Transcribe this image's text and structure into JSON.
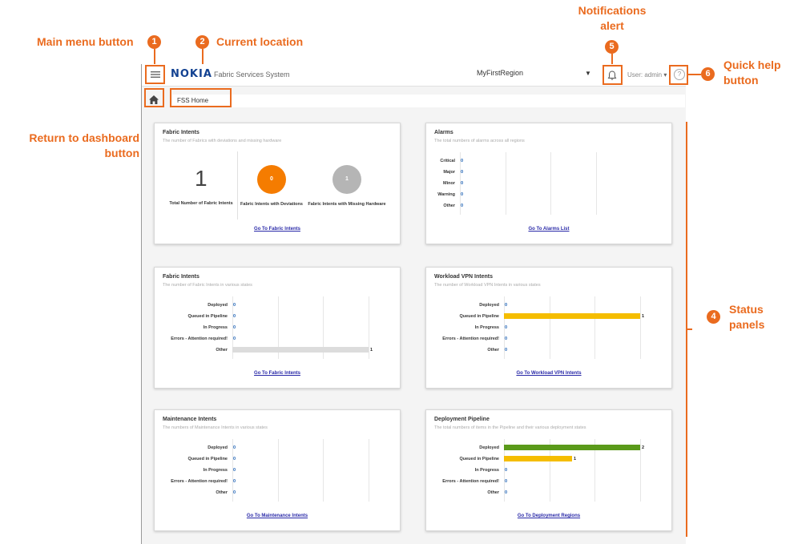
{
  "callouts": {
    "main_menu": {
      "number": "1",
      "label": "Main menu button"
    },
    "current_location": {
      "number": "2",
      "label": "Current location"
    },
    "dashboard": {
      "number": "3",
      "label_line1": "Return to dashboard",
      "label_line2": "button"
    },
    "status_panels": {
      "number": "4",
      "label_line1": "Status",
      "label_line2": "panels"
    },
    "notifications": {
      "number": "5",
      "label_line1": "Notifications",
      "label_line2": "alert"
    },
    "quick_help": {
      "number": "6",
      "label_line1": "Quick help",
      "label_line2": "button"
    }
  },
  "header": {
    "logo": "NOKIA",
    "app_title": "Fabric Services System",
    "region": "MyFirstRegion",
    "user": "User: admin",
    "help_icon": "?"
  },
  "breadcrumb": {
    "current": "FSS Home"
  },
  "colors": {
    "accent": "#ea6b1f",
    "orange_circle": "#f57c00",
    "gray_circle": "#b5b5b5",
    "yellow_bar": "#f5bd00",
    "green_bar": "#5a9a1a",
    "gray_bar": "#dcdcdc",
    "nokia_blue": "#124191"
  },
  "panels": {
    "fabric_summary": {
      "title": "Fabric Intents",
      "subtitle": "The number of Fabrics with deviations and missing hardware",
      "total_value": "1",
      "total_label": "Total Number of Fabric Intents",
      "deviations_value": "0",
      "deviations_label": "Fabric Intents with Deviations",
      "missing_value": "1",
      "missing_label": "Fabric Intents with Missing Hardware",
      "link": "Go To Fabric Intents"
    },
    "alarms": {
      "title": "Alarms",
      "subtitle": "The total numbers of alarms across all regions",
      "rows": [
        {
          "label": "Critical",
          "value": "0"
        },
        {
          "label": "Major",
          "value": "0"
        },
        {
          "label": "Minor",
          "value": "0"
        },
        {
          "label": "Warning",
          "value": "0"
        },
        {
          "label": "Other",
          "value": "0"
        }
      ],
      "link": "Go To Alarms List"
    },
    "fabric_states": {
      "title": "Fabric Intents",
      "subtitle": "The number of Fabric Intents in various states",
      "rows": [
        {
          "label": "Deployed",
          "value": "0"
        },
        {
          "label": "Queued in Pipeline",
          "value": "0"
        },
        {
          "label": "In Progress",
          "value": "0"
        },
        {
          "label": "Errors - Attention required!",
          "value": "0"
        },
        {
          "label": "Other",
          "value": "1"
        }
      ],
      "link": "Go To Fabric Intents"
    },
    "workload_vpn": {
      "title": "Workload VPN Intents",
      "subtitle": "The number of Workload VPN Intents in various states",
      "rows": [
        {
          "label": "Deployed",
          "value": "0"
        },
        {
          "label": "Queued in Pipeline",
          "value": "1"
        },
        {
          "label": "In Progress",
          "value": "0"
        },
        {
          "label": "Errors - Attention required!",
          "value": "0"
        },
        {
          "label": "Other",
          "value": "0"
        }
      ],
      "link": "Go To Workload VPN Intents"
    },
    "maintenance": {
      "title": "Maintenance Intents",
      "subtitle": "The numbers of Maintenance Intents in various states",
      "rows": [
        {
          "label": "Deployed",
          "value": "0"
        },
        {
          "label": "Queued in Pipeline",
          "value": "0"
        },
        {
          "label": "In Progress",
          "value": "0"
        },
        {
          "label": "Errors - Attention required!",
          "value": "0"
        },
        {
          "label": "Other",
          "value": "0"
        }
      ],
      "link": "Go To Maintenance Intents"
    },
    "pipeline": {
      "title": "Deployment Pipeline",
      "subtitle": "The total numbers of items in the Pipeline and their various deployment states",
      "rows": [
        {
          "label": "Deployed",
          "value": "2"
        },
        {
          "label": "Queued in Pipeline",
          "value": "1"
        },
        {
          "label": "In Progress",
          "value": "0"
        },
        {
          "label": "Errors - Attention required!",
          "value": "0"
        },
        {
          "label": "Other",
          "value": "0"
        }
      ],
      "link": "Go To Deployment Regions"
    }
  }
}
